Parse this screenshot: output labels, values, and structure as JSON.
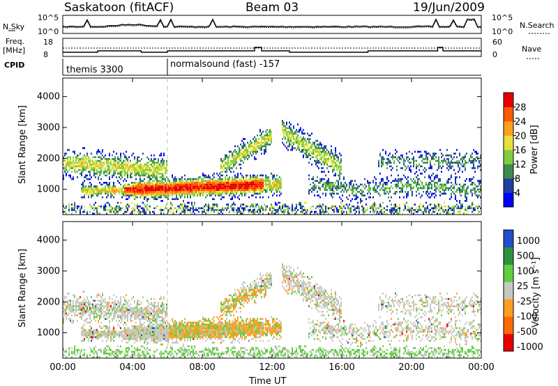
{
  "header": {
    "station": "Saskatoon (fitACF)",
    "beam": "Beam 03",
    "date": "19/Jun/2009"
  },
  "strip_labels": {
    "nsky": "N.Sky",
    "nsearch": "N.Search",
    "freq_line1": "Freq.",
    "freq_line2": "[MHz]",
    "nave": "Nave",
    "cpid": "CPID",
    "nsky_ticks": [
      "10^5",
      "10^0"
    ],
    "nsearch_ticks": [
      "10^5",
      "10^0"
    ],
    "freq_ticks": [
      "18",
      "8"
    ],
    "nave_ticks": [
      "60",
      "0"
    ]
  },
  "cpid": {
    "program1": "themis 3300",
    "program2": "normalsound (fast) -157"
  },
  "colors": {
    "power": [
      "#0000ff",
      "#1f3fa0",
      "#3c8c50",
      "#7fcf3f",
      "#e8e03a",
      "#ff9f1f",
      "#ff5a00",
      "#e60000"
    ],
    "velocity": [
      "#e60000",
      "#ff6a00",
      "#ff9f1f",
      "#c8c8c0",
      "#5fcf3f",
      "#2f8f3f",
      "#1f4fcf"
    ]
  },
  "chart_data": [
    {
      "type": "heatmap",
      "title": "Power",
      "xlabel": "",
      "ylabel": "Slant Range [km]",
      "x_range": [
        "00:00",
        "24:00"
      ],
      "ylim": [
        180,
        4600
      ],
      "y_ticks": [
        "1000",
        "2000",
        "3000",
        "4000"
      ],
      "x_ticks": [
        "00:00",
        "04:00",
        "08:00",
        "12:00",
        "16:00",
        "20:00",
        "00:00"
      ],
      "colorbar": {
        "label": "Power [dB]",
        "ticks": [
          "4",
          "8",
          "12",
          "16",
          "20",
          "24",
          "28"
        ],
        "range": [
          0,
          30
        ]
      }
    },
    {
      "type": "heatmap",
      "title": "Velocity",
      "xlabel": "Time UT",
      "ylabel": "Slant Range [km]",
      "x_range": [
        "00:00",
        "24:00"
      ],
      "ylim": [
        180,
        4600
      ],
      "y_ticks": [
        "1000",
        "2000",
        "3000",
        "4000"
      ],
      "x_ticks": [
        "00:00",
        "04:00",
        "08:00",
        "12:00",
        "16:00",
        "20:00",
        "00:00"
      ],
      "colorbar": {
        "label": "Velocity [m s⁻¹]",
        "ticks": [
          "1000",
          "500",
          "100",
          "25",
          "-25",
          "-100",
          "-500",
          "-1000"
        ]
      }
    }
  ]
}
